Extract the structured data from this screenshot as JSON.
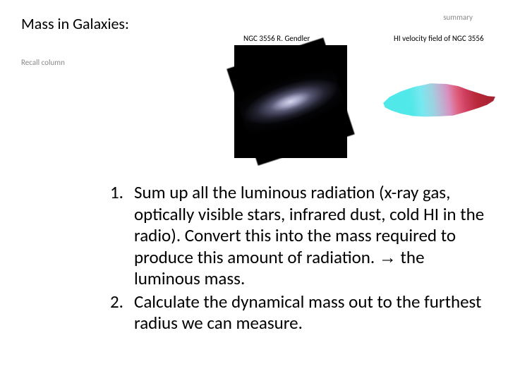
{
  "title": "Mass in Galaxies:",
  "summary_label": "summary",
  "recall_label": "Recall column",
  "images": {
    "left_caption": "NGC 3556 R. Gendler",
    "right_caption": "HI velocity field of NGC 3556"
  },
  "list": {
    "items": [
      {
        "num": "1.",
        "text": "Sum up all the luminous radiation (x-ray gas, optically visible stars, infrared dust, cold HI in the radio). Convert this into the mass required to produce this amount of radiation. → the luminous mass."
      },
      {
        "num": "2.",
        "text": "Calculate the dynamical mass out to the furthest radius we can measure."
      }
    ]
  },
  "styling": {
    "background_color": "#ffffff",
    "title_fontsize": 22,
    "caption_fontsize": 11,
    "body_fontsize": 25,
    "muted_color": "#888888",
    "text_color": "#000000",
    "galaxy_colors": [
      "#d8d8f0",
      "#a0a0c0",
      "#555570",
      "#222230",
      "#000000"
    ],
    "velocity_gradient": [
      "#50e8e8",
      "#78e8f0",
      "#a0d0e0",
      "#c0b0d0",
      "#d890c0",
      "#e06080",
      "#d04060",
      "#b82838",
      "#a02030"
    ]
  }
}
